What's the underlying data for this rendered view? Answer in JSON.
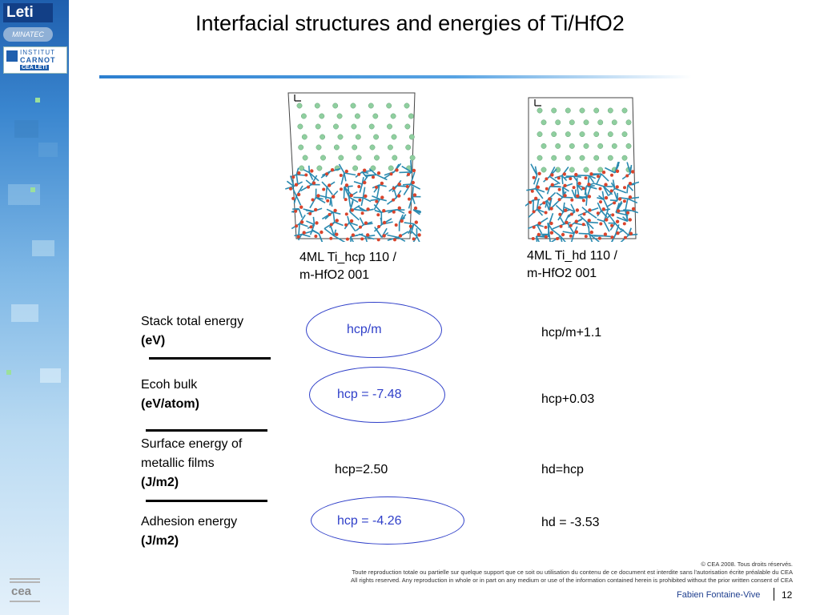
{
  "title": "Interfacial structures and energies of Ti/HfO2",
  "logos": {
    "leti": "Leti",
    "minatec": "MINATEC",
    "carnot_line1": "INSTITUT",
    "carnot_line2": "CARNOT",
    "carnot_line3": "CEA LETI",
    "cea": "cea"
  },
  "columns": [
    {
      "caption_line1": "4ML Ti_hcp 110 /",
      "caption_line2": "m-HfO2 001"
    },
    {
      "caption_line1": "4ML Ti_hd 110 /",
      "caption_line2": "m-HfO2 001"
    }
  ],
  "rows": [
    {
      "label_line1": "Stack total energy",
      "label_unit": "(eV)",
      "hcp": "hcp/m",
      "hd": "hcp/m+1.1"
    },
    {
      "label_line1": "Ecoh bulk",
      "label_unit": "(eV/atom)",
      "hcp": "hcp = -7.48",
      "hd": "hcp+0.03"
    },
    {
      "label_line1": "Surface energy of",
      "label_line2": "metallic films",
      "label_unit": "(J/m2)",
      "hcp": "hcp=2.50",
      "hd": "hd=hcp"
    },
    {
      "label_line1": "Adhesion energy",
      "label_unit": "(J/m2)",
      "hcp": "hcp = -4.26",
      "hd": "hd = -3.53"
    }
  ],
  "footer": {
    "copyright": "© CEA 2008. Tous droits réservés.",
    "notice_fr": "Toute reproduction totale ou partielle sur quelque support que ce soit ou utilisation du contenu de ce document est interdite sans l'autorisation écrite préalable du CEA",
    "notice_en": "All rights reserved. Any reproduction in whole or in part on any medium or use of the information contained herein is prohibited without the prior written consent of CEA",
    "author": "Fabien Fontaine-Vive",
    "page": "12"
  },
  "colors": {
    "highlight": "#2f3fc9",
    "ti_atom": "#8fcf9f",
    "hf_bond": "#2a8ab0",
    "o_atom": "#d9442c"
  },
  "icons": [
    "axis-triad-icon",
    "axis-triad-icon"
  ]
}
